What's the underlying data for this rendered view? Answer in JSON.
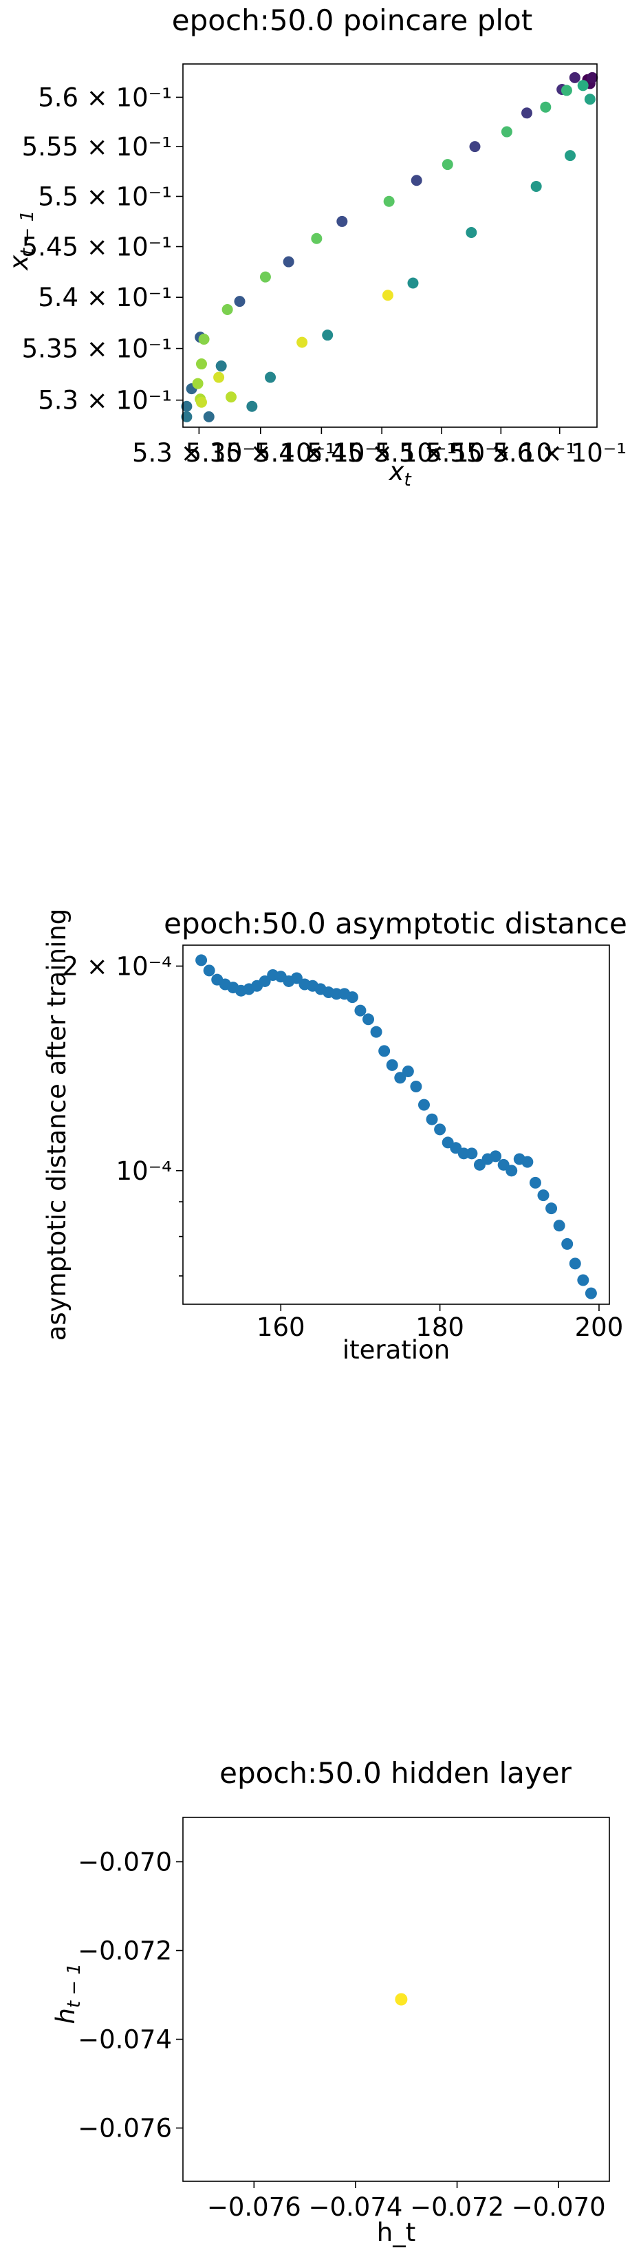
{
  "chart_data": [
    {
      "type": "scatter",
      "title": "epoch:50.0 poincare plot",
      "xlabel": "x_t",
      "ylabel": "x_{t-1}",
      "xscale": "log",
      "yscale": "log",
      "xlim": [
        0.5287,
        0.5632
      ],
      "ylim": [
        0.5274,
        0.5634
      ],
      "xticks": [
        0.53,
        0.535,
        0.54,
        0.545,
        0.55,
        0.555,
        0.56
      ],
      "xtick_labels": [
        "5.3 × 10⁻¹",
        "5.35 × 10⁻¹",
        "5.4 × 10⁻¹",
        "5.45 × 10⁻¹",
        "5.5 × 10⁻¹",
        "5.55 × 10⁻¹",
        "5.6 × 10⁻¹"
      ],
      "yticks": [
        0.53,
        0.535,
        0.54,
        0.545,
        0.55,
        0.555,
        0.56
      ],
      "ytick_labels": [
        "5.3 × 10⁻¹",
        "5.35 × 10⁻¹",
        "5.4 × 10⁻¹",
        "5.45 × 10⁻¹",
        "5.5 × 10⁻¹",
        "5.55 × 10⁻¹",
        "5.6 × 10⁻¹"
      ],
      "colormap": "viridis",
      "grid": false,
      "points": [
        {
          "x": 0.5624,
          "y": 0.5618,
          "c": 0.0
        },
        {
          "x": 0.5626,
          "y": 0.5614,
          "c": 0.02
        },
        {
          "x": 0.5628,
          "y": 0.562,
          "c": 0.04
        },
        {
          "x": 0.5613,
          "y": 0.562,
          "c": 0.1
        },
        {
          "x": 0.5602,
          "y": 0.5608,
          "c": 0.14
        },
        {
          "x": 0.5572,
          "y": 0.5584,
          "c": 0.18
        },
        {
          "x": 0.5528,
          "y": 0.555,
          "c": 0.2
        },
        {
          "x": 0.5479,
          "y": 0.5516,
          "c": 0.22
        },
        {
          "x": 0.5417,
          "y": 0.5475,
          "c": 0.24
        },
        {
          "x": 0.5373,
          "y": 0.5435,
          "c": 0.26
        },
        {
          "x": 0.5333,
          "y": 0.5396,
          "c": 0.28
        },
        {
          "x": 0.5301,
          "y": 0.5361,
          "c": 0.3
        },
        {
          "x": 0.5294,
          "y": 0.5311,
          "c": 0.34
        },
        {
          "x": 0.5308,
          "y": 0.5284,
          "c": 0.36
        },
        {
          "x": 0.529,
          "y": 0.5294,
          "c": 0.38
        },
        {
          "x": 0.529,
          "y": 0.5284,
          "c": 0.4
        },
        {
          "x": 0.5318,
          "y": 0.5333,
          "c": 0.42
        },
        {
          "x": 0.5343,
          "y": 0.5294,
          "c": 0.44
        },
        {
          "x": 0.5358,
          "y": 0.5322,
          "c": 0.46
        },
        {
          "x": 0.5405,
          "y": 0.5363,
          "c": 0.48
        },
        {
          "x": 0.5476,
          "y": 0.5414,
          "c": 0.5
        },
        {
          "x": 0.5525,
          "y": 0.5464,
          "c": 0.52
        },
        {
          "x": 0.558,
          "y": 0.551,
          "c": 0.54
        },
        {
          "x": 0.5609,
          "y": 0.5541,
          "c": 0.56
        },
        {
          "x": 0.5626,
          "y": 0.5598,
          "c": 0.58
        },
        {
          "x": 0.562,
          "y": 0.5612,
          "c": 0.62
        },
        {
          "x": 0.5606,
          "y": 0.5607,
          "c": 0.66
        },
        {
          "x": 0.5588,
          "y": 0.559,
          "c": 0.68
        },
        {
          "x": 0.5555,
          "y": 0.5565,
          "c": 0.7
        },
        {
          "x": 0.5505,
          "y": 0.5532,
          "c": 0.72
        },
        {
          "x": 0.5456,
          "y": 0.5495,
          "c": 0.74
        },
        {
          "x": 0.5396,
          "y": 0.5458,
          "c": 0.76
        },
        {
          "x": 0.5354,
          "y": 0.542,
          "c": 0.78
        },
        {
          "x": 0.5323,
          "y": 0.5388,
          "c": 0.8
        },
        {
          "x": 0.5304,
          "y": 0.5359,
          "c": 0.82
        },
        {
          "x": 0.5302,
          "y": 0.5335,
          "c": 0.84
        },
        {
          "x": 0.5299,
          "y": 0.5316,
          "c": 0.86
        },
        {
          "x": 0.5301,
          "y": 0.5301,
          "c": 0.88
        },
        {
          "x": 0.5326,
          "y": 0.5303,
          "c": 0.9
        },
        {
          "x": 0.5302,
          "y": 0.5298,
          "c": 0.92
        },
        {
          "x": 0.5316,
          "y": 0.5322,
          "c": 0.94
        },
        {
          "x": 0.5384,
          "y": 0.5356,
          "c": 0.96
        },
        {
          "x": 0.5455,
          "y": 0.5402,
          "c": 0.98
        }
      ]
    },
    {
      "type": "scatter",
      "title": "epoch:50.0 asymptotic distance",
      "xlabel": "iteration",
      "ylabel": "asymptotic distance after training",
      "yscale": "log",
      "xlim": [
        147.7,
        201.3
      ],
      "ylim": [
        6.36e-05,
        0.0002147
      ],
      "xticks": [
        160,
        180,
        200
      ],
      "xtick_labels": [
        "160",
        "180",
        "200"
      ],
      "yticks": [
        0.0001,
        0.0002
      ],
      "ytick_labels": [
        "10⁻⁴",
        "2 × 10⁻⁴"
      ],
      "yminor_ticks": [
        7e-05,
        8e-05,
        9e-05
      ],
      "color": "#1f77b4",
      "grid": false,
      "x": [
        150,
        151,
        152,
        153,
        154,
        155,
        156,
        157,
        158,
        159,
        160,
        161,
        162,
        163,
        164,
        165,
        166,
        167,
        168,
        169,
        170,
        171,
        172,
        173,
        174,
        175,
        176,
        177,
        178,
        179,
        180,
        181,
        182,
        183,
        184,
        185,
        186,
        187,
        188,
        189,
        190,
        191,
        192,
        193,
        194,
        195,
        196,
        197,
        198,
        199
      ],
      "y": [
        0.000204,
        0.000197,
        0.000191,
        0.000188,
        0.000186,
        0.000184,
        0.000185,
        0.000187,
        0.00019,
        0.000194,
        0.000193,
        0.00019,
        0.000192,
        0.000188,
        0.000187,
        0.000185,
        0.000183,
        0.000182,
        0.000182,
        0.00018,
        0.000172,
        0.000167,
        0.00016,
        0.00015,
        0.000143,
        0.000137,
        0.00014,
        0.000133,
        0.000125,
        0.000119,
        0.000115,
        0.00011,
        0.000108,
        0.000106,
        0.000106,
        0.000102,
        0.000104,
        0.000105,
        0.000102,
        0.0001,
        0.000104,
        0.000103,
        9.6e-05,
        9.2e-05,
        8.8e-05,
        8.3e-05,
        7.8e-05,
        7.3e-05,
        6.9e-05,
        6.6e-05
      ]
    },
    {
      "type": "scatter",
      "title": "epoch:50.0 hidden layer",
      "xlabel": "h_t",
      "ylabel": "h_{t-1}",
      "xlim": [
        -0.0774,
        -0.069
      ],
      "ylim": [
        -0.0772,
        -0.069
      ],
      "xticks": [
        -0.076,
        -0.074,
        -0.072,
        -0.07
      ],
      "xtick_labels": [
        "−0.076",
        "−0.074",
        "−0.072",
        "−0.070"
      ],
      "yticks": [
        -0.07,
        -0.072,
        -0.074,
        -0.076
      ],
      "ytick_labels": [
        "−0.070",
        "−0.072",
        "−0.074",
        "−0.076"
      ],
      "color": "#fde725",
      "grid": false,
      "points": [
        {
          "x": -0.0731,
          "y": -0.0731
        }
      ]
    }
  ]
}
